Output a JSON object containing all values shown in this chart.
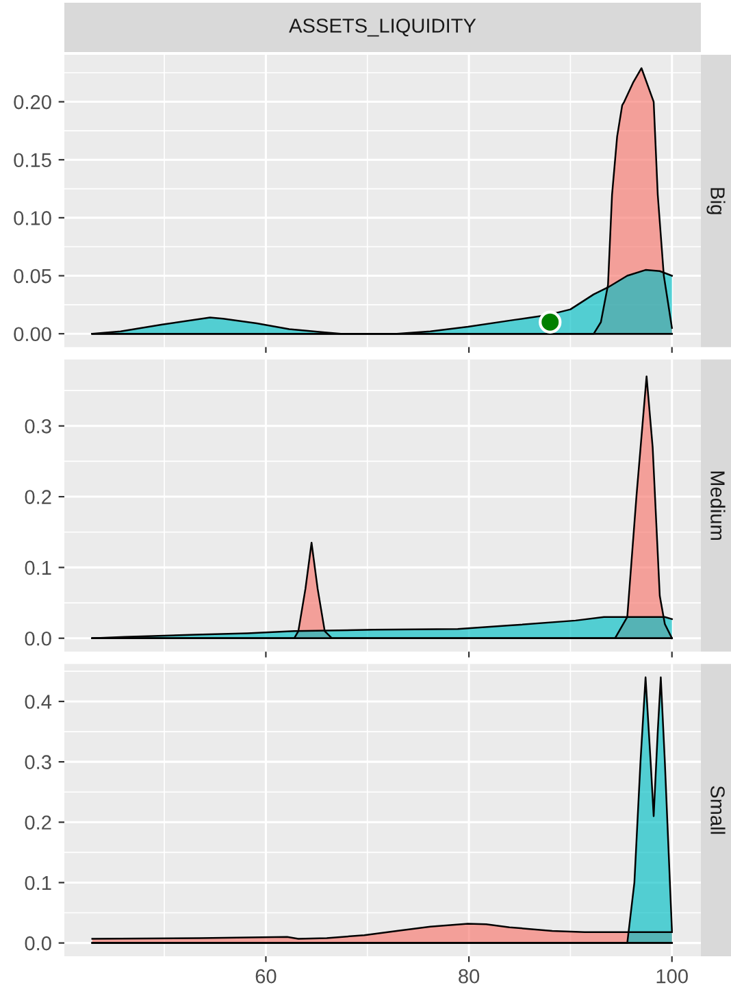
{
  "chart_data": [
    {
      "type": "area",
      "subtitle": "ASSETS_LIQUIDITY",
      "title": "Big",
      "tick_labels": "y",
      "grid": true,
      "xlim": [
        40.15,
        102.85
      ],
      "xticks": [
        {
          "value": 50,
          "label": null
        },
        60,
        {
          "value": 70,
          "label": null
        },
        80,
        {
          "value": 90,
          "label": null
        },
        100
      ],
      "ylim": [
        -0.0115,
        0.2405
      ],
      "yticks": [
        {
          "value": 0,
          "label": "0.00"
        },
        {
          "value": 0.025,
          "label": null
        },
        {
          "value": 0.05,
          "label": "0.05"
        },
        {
          "value": 0.075,
          "label": null
        },
        {
          "value": 0.1,
          "label": "0.10"
        },
        {
          "value": 0.125,
          "label": null
        },
        {
          "value": 0.15,
          "label": "0.15"
        },
        {
          "value": 0.175,
          "label": null
        },
        {
          "value": 0.2,
          "label": "0.20"
        },
        {
          "value": 0.225,
          "label": null
        }
      ],
      "series": [
        {
          "color": "#F8766D",
          "x": [
            42.9,
            92.3,
            93.0,
            93.7,
            94.1,
            94.6,
            95.1,
            95.3,
            96.2,
            97.0,
            98.2,
            98.6,
            99.2,
            100
          ],
          "values": [
            0,
            0,
            0.01,
            0.042,
            0.12,
            0.17,
            0.197,
            0.2,
            0.217,
            0.229,
            0.2,
            0.12,
            0.05,
            0.005
          ]
        },
        {
          "color": "#00BFC4",
          "x": [
            42.9,
            45.7,
            49.8,
            54.5,
            55.8,
            59.1,
            62.3,
            66.0,
            67.4,
            72.9,
            76.2,
            79.9,
            84.5,
            87.7,
            90.0,
            92.3,
            93.7,
            95.6,
            97.4,
            98.8,
            100
          ],
          "values": [
            0,
            0.002,
            0.008,
            0.014,
            0.013,
            0.009,
            0.004,
            0.001,
            0,
            0,
            0.002,
            0.006,
            0.012,
            0.016,
            0.021,
            0.034,
            0.04,
            0.05,
            0.055,
            0.054,
            0.05
          ]
        },
        {
          "type": "scatter",
          "color": "#008000",
          "x": [
            88
          ],
          "values": [
            0.01
          ]
        }
      ]
    },
    {
      "type": "area",
      "title": "Medium",
      "tick_labels": "y",
      "grid": true,
      "xlim": [
        40.15,
        102.85
      ],
      "xticks": [
        {
          "value": 50,
          "label": null
        },
        60,
        {
          "value": 70,
          "label": null
        },
        80,
        {
          "value": 90,
          "label": null
        },
        100
      ],
      "ylim": [
        -0.019,
        0.394
      ],
      "yticks": [
        {
          "value": 0,
          "label": "0.0"
        },
        {
          "value": 0.05,
          "label": null
        },
        0.1,
        {
          "value": 0.15,
          "label": null
        },
        0.2,
        {
          "value": 0.25,
          "label": null
        },
        0.3,
        {
          "value": 0.35,
          "label": null
        }
      ],
      "series": [
        {
          "color": "#F8766D",
          "x": [
            42.9,
            62.8,
            63.2,
            63.9,
            64.5,
            65.1,
            65.8,
            66.5,
            94.4,
            95.6,
            96.5,
            97.5,
            98.1,
            98.8,
            99.3,
            100
          ],
          "values": [
            0,
            0,
            0.01,
            0.07,
            0.135,
            0.07,
            0.01,
            0,
            0,
            0.03,
            0.2,
            0.37,
            0.27,
            0.06,
            0.02,
            0
          ]
        },
        {
          "color": "#00BFC4",
          "x": [
            42.9,
            46.1,
            53.1,
            58.2,
            62.8,
            70.6,
            78.9,
            84.0,
            90.5,
            93.3,
            99.3,
            100
          ],
          "values": [
            0,
            0.002,
            0.005,
            0.007,
            0.01,
            0.012,
            0.013,
            0.018,
            0.025,
            0.03,
            0.03,
            0.027
          ]
        }
      ]
    },
    {
      "type": "area",
      "title": "Small",
      "grid": true,
      "xlim": [
        40.15,
        102.85
      ],
      "xticks": [
        {
          "value": 50,
          "label": null
        },
        60,
        {
          "value": 70,
          "label": null
        },
        80,
        {
          "value": 90,
          "label": null
        },
        100
      ],
      "ylim": [
        -0.022,
        0.462
      ],
      "yticks": [
        {
          "value": 0,
          "label": "0.0"
        },
        {
          "value": 0.05,
          "label": null
        },
        0.1,
        {
          "value": 0.15,
          "label": null
        },
        0.2,
        {
          "value": 0.25,
          "label": null
        },
        0.3,
        {
          "value": 0.35,
          "label": null
        },
        0.4,
        {
          "value": 0.45,
          "label": null
        }
      ],
      "series": [
        {
          "color": "#F8766D",
          "x": [
            42.9,
            53.5,
            62.1,
            63.2,
            66.0,
            69.7,
            72.9,
            76.2,
            79.9,
            81.7,
            84.0,
            88.2,
            91.4,
            96.0,
            100
          ],
          "values": [
            0.007,
            0.008,
            0.01,
            0.007,
            0.008,
            0.013,
            0.02,
            0.027,
            0.032,
            0.031,
            0.026,
            0.02,
            0.018,
            0.018,
            0.018
          ]
        },
        {
          "color": "#00BFC4",
          "x": [
            42.9,
            95.6,
            96.3,
            96.9,
            97.4,
            97.9,
            98.2,
            98.6,
            98.9,
            99.3,
            99.8,
            100
          ],
          "values": [
            0,
            0,
            0.1,
            0.3,
            0.44,
            0.3,
            0.21,
            0.35,
            0.44,
            0.3,
            0.1,
            0.02
          ]
        }
      ]
    }
  ]
}
